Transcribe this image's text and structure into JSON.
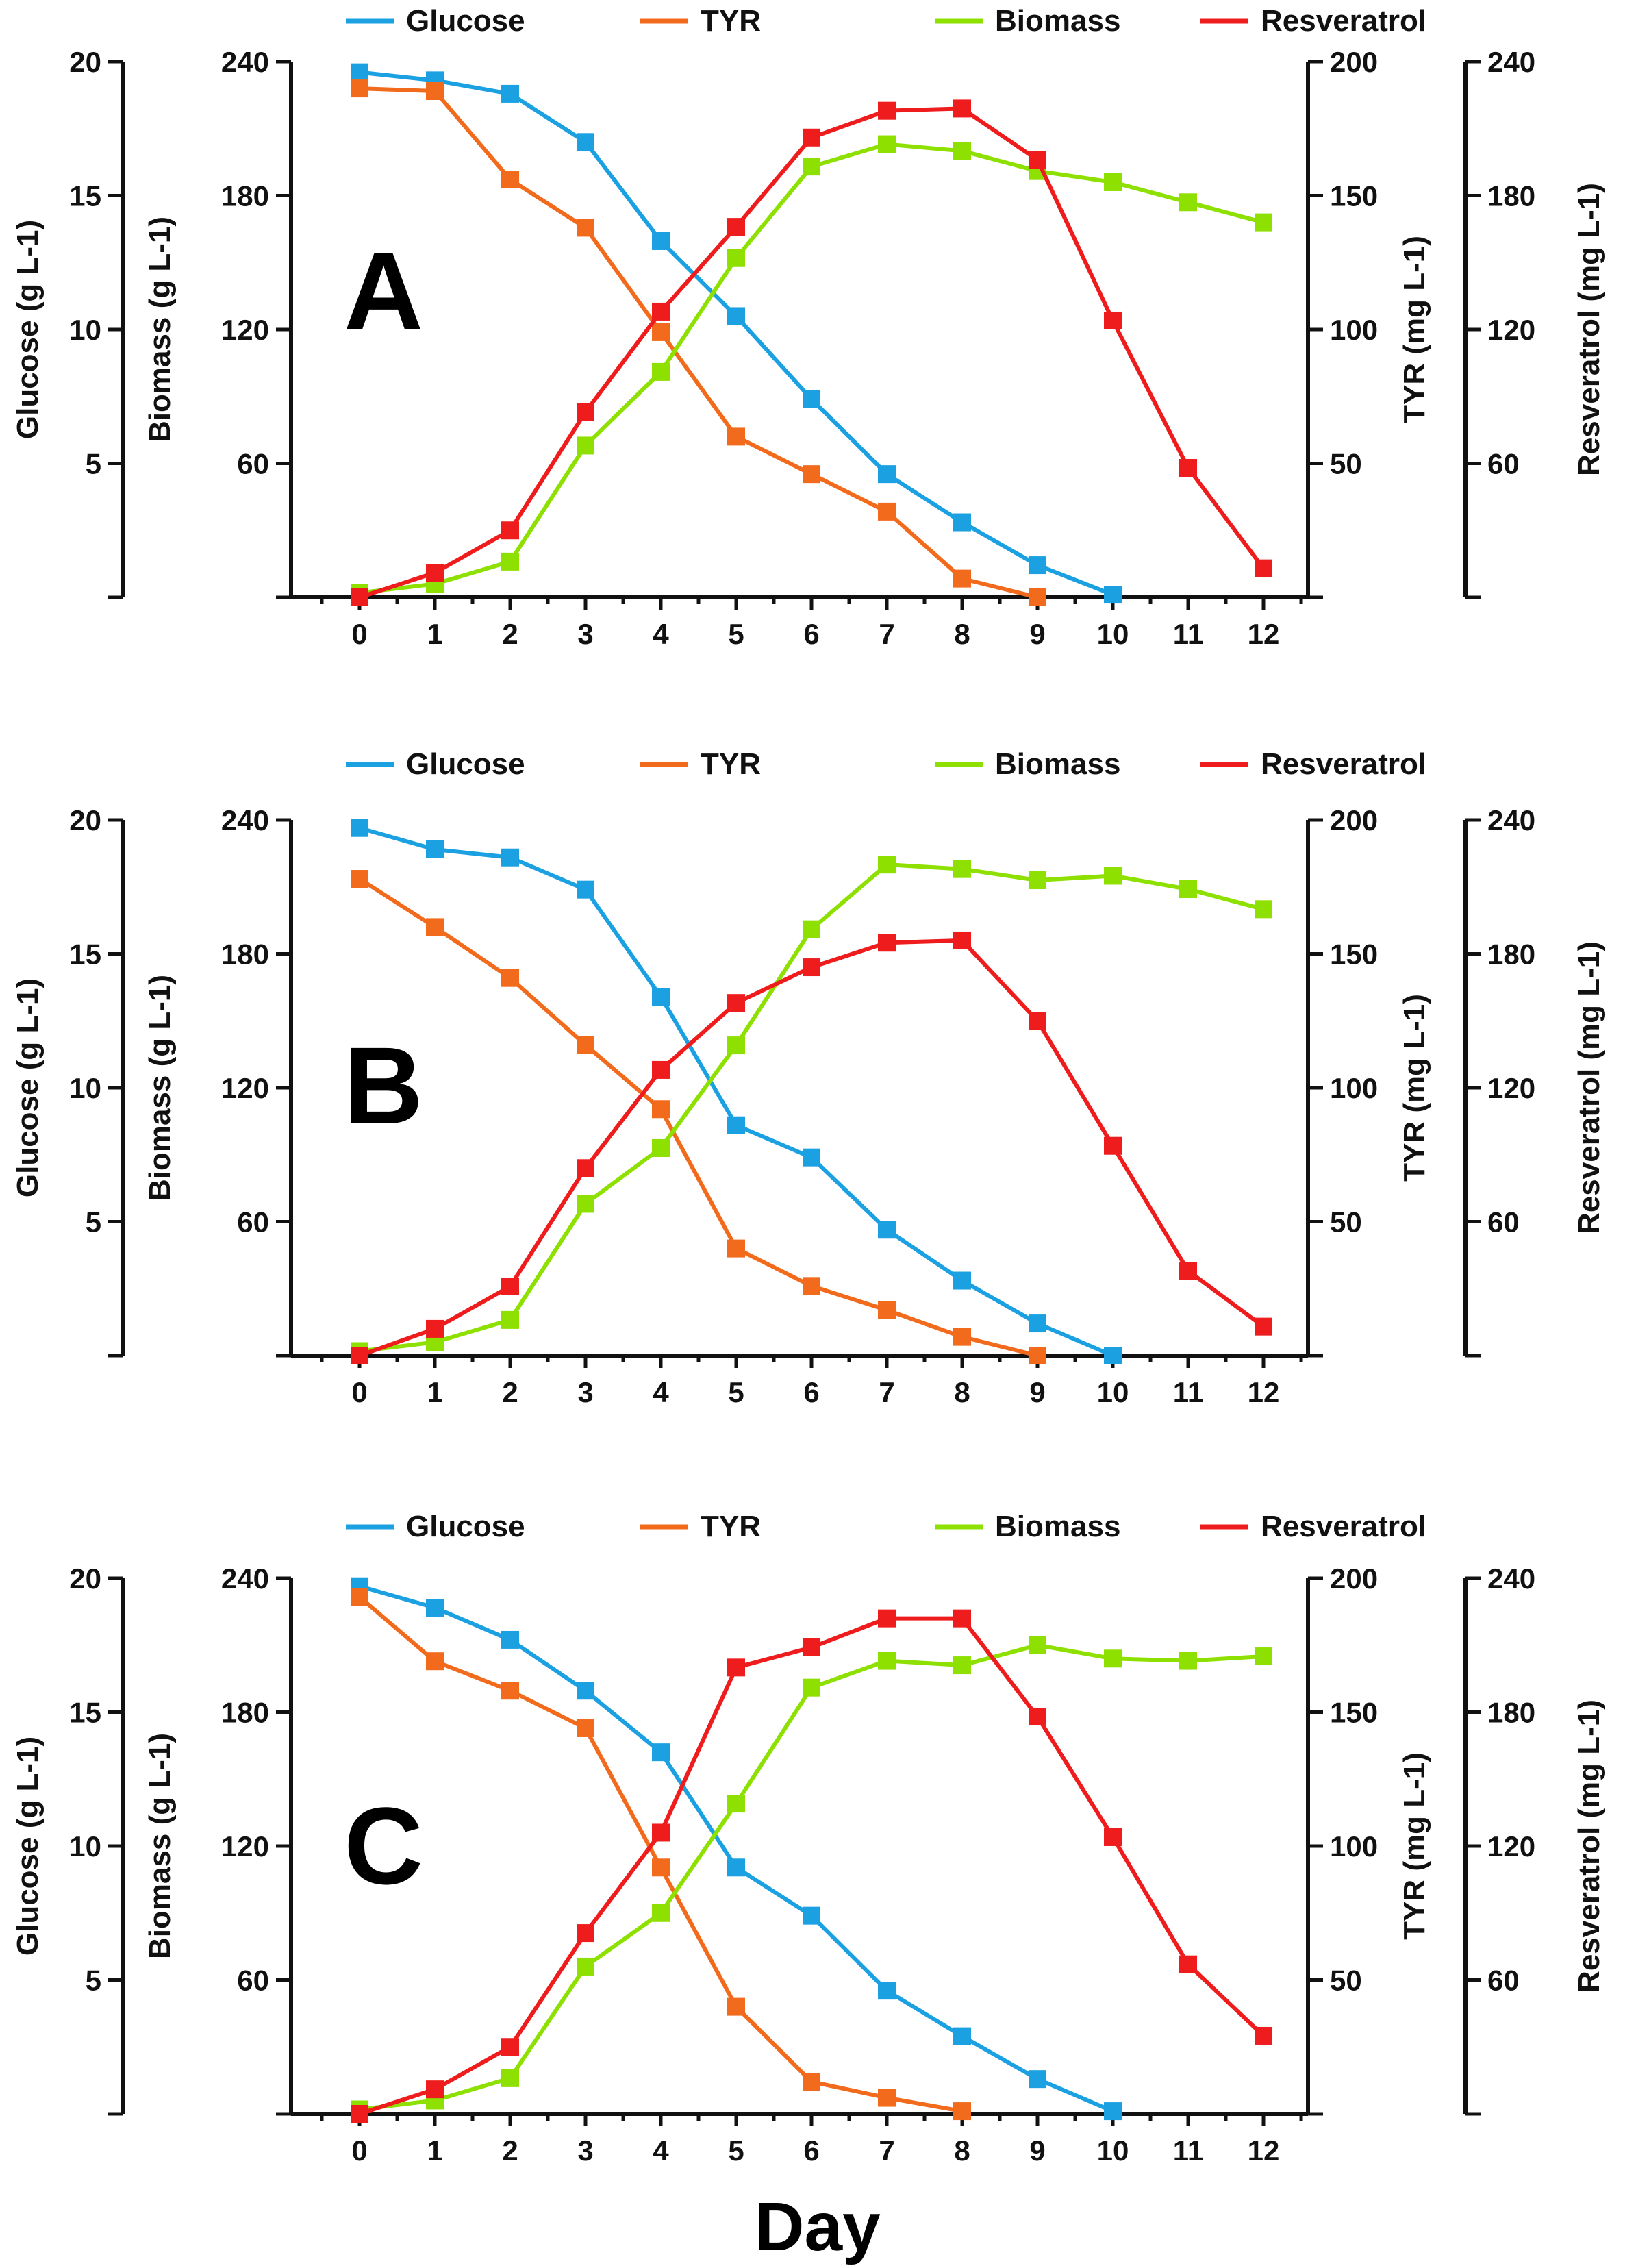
{
  "chart_data": {
    "type": "line",
    "xlabel": "Day",
    "x": [
      0,
      1,
      2,
      3,
      4,
      5,
      6,
      7,
      8,
      9,
      10,
      11,
      12
    ],
    "axes": {
      "glucose": {
        "label": "Glucose (g L-1)",
        "ylim": [
          0,
          20
        ],
        "ticks": [
          5,
          10,
          15,
          20
        ],
        "tick_labels": [
          "5",
          "10",
          "15",
          "20"
        ]
      },
      "biomass": {
        "label": "Biomass (g L-1)",
        "ylim": [
          0,
          240
        ],
        "ticks": [
          60,
          120,
          180,
          240
        ],
        "tick_labels": [
          "60",
          "120",
          "180",
          "240"
        ]
      },
      "tyr": {
        "label": "TYR (mg L-1)",
        "ylim": [
          0,
          200
        ],
        "ticks": [
          50,
          100,
          150,
          200
        ],
        "tick_labels": [
          "50",
          "100",
          "150",
          "200"
        ]
      },
      "resveratrol": {
        "label": "Resveratrol (mg L-1)",
        "ylim": [
          0,
          240
        ],
        "ticks": [
          60,
          120,
          180,
          240
        ],
        "tick_labels": [
          "60",
          "120",
          "180",
          "240"
        ]
      }
    },
    "legend": [
      {
        "name": "Glucose",
        "color": "#1ba1e2"
      },
      {
        "name": "TYR",
        "color": "#f26b1d"
      },
      {
        "name": "Biomass",
        "color": "#8ee000"
      },
      {
        "name": "Resveratrol",
        "color": "#ee1c1c"
      }
    ],
    "panels": [
      {
        "title": "A",
        "series": [
          {
            "name": "Glucose",
            "axis": "glucose",
            "color": "#1ba1e2",
            "x": [
              0,
              1,
              2,
              3,
              4,
              5,
              6,
              7,
              8,
              9,
              10
            ],
            "values": [
              19.6,
              19.3,
              18.8,
              17.0,
              13.3,
              10.5,
              7.4,
              4.6,
              2.8,
              1.2,
              0.1
            ]
          },
          {
            "name": "TYR",
            "axis": "tyr",
            "color": "#f26b1d",
            "x": [
              0,
              1,
              2,
              3,
              4,
              5,
              6,
              7,
              8,
              9
            ],
            "values": [
              190,
              189,
              156,
              138,
              99,
              60,
              46,
              32,
              7,
              0
            ]
          },
          {
            "name": "Biomass",
            "axis": "biomass",
            "color": "#8ee000",
            "x": [
              0,
              1,
              2,
              3,
              4,
              5,
              6,
              7,
              8,
              9,
              10,
              11,
              12
            ],
            "values": [
              2,
              6,
              16,
              68,
              101,
              152,
              193,
              203,
              200,
              191,
              186,
              177,
              168
            ]
          },
          {
            "name": "Resveratrol",
            "axis": "resveratrol",
            "color": "#ee1c1c",
            "x": [
              0,
              1,
              2,
              3,
              4,
              5,
              6,
              7,
              8,
              9,
              10,
              11,
              12
            ],
            "values": [
              0,
              11,
              30,
              83,
              128,
              166,
              206,
              218,
              219,
              196,
              124,
              58,
              13
            ]
          }
        ]
      },
      {
        "title": "B",
        "series": [
          {
            "name": "Glucose",
            "axis": "glucose",
            "color": "#1ba1e2",
            "x": [
              0,
              1,
              2,
              3,
              4,
              5,
              6,
              7,
              8,
              9,
              10
            ],
            "values": [
              19.7,
              18.9,
              18.6,
              17.4,
              13.4,
              8.6,
              7.4,
              4.7,
              2.8,
              1.2,
              0.0
            ]
          },
          {
            "name": "TYR",
            "axis": "tyr",
            "color": "#f26b1d",
            "x": [
              0,
              1,
              2,
              3,
              4,
              5,
              6,
              7,
              8,
              9
            ],
            "values": [
              178,
              160,
              141,
              116,
              92,
              40,
              26,
              17,
              7,
              0
            ]
          },
          {
            "name": "Biomass",
            "axis": "biomass",
            "color": "#8ee000",
            "x": [
              0,
              1,
              2,
              3,
              4,
              5,
              6,
              7,
              8,
              9,
              10,
              11,
              12
            ],
            "values": [
              2,
              6,
              16,
              68,
              93,
              139,
              191,
              220,
              218,
              213,
              215,
              209,
              200
            ]
          },
          {
            "name": "Resveratrol",
            "axis": "resveratrol",
            "color": "#ee1c1c",
            "x": [
              0,
              1,
              2,
              3,
              4,
              5,
              6,
              7,
              8,
              9,
              10,
              11,
              12
            ],
            "values": [
              0,
              12,
              31,
              84,
              128,
              158,
              174,
              185,
              186,
              150,
              94,
              38,
              13
            ]
          }
        ]
      },
      {
        "title": "C",
        "series": [
          {
            "name": "Glucose",
            "axis": "glucose",
            "color": "#1ba1e2",
            "x": [
              0,
              1,
              2,
              3,
              4,
              5,
              6,
              7,
              8,
              9,
              10
            ],
            "values": [
              19.7,
              18.9,
              17.7,
              15.8,
              13.5,
              9.2,
              7.4,
              4.6,
              2.9,
              1.3,
              0.1
            ]
          },
          {
            "name": "TYR",
            "axis": "tyr",
            "color": "#f26b1d",
            "x": [
              0,
              1,
              2,
              3,
              4,
              5,
              6,
              7,
              8
            ],
            "values": [
              193,
              169,
              158,
              144,
              92,
              40,
              12,
              6,
              1
            ]
          },
          {
            "name": "Biomass",
            "axis": "biomass",
            "color": "#8ee000",
            "x": [
              0,
              1,
              2,
              3,
              4,
              5,
              6,
              7,
              8,
              9,
              10,
              11,
              12
            ],
            "values": [
              2,
              6,
              16,
              66,
              90,
              139,
              191,
              203,
              201,
              210,
              204,
              203,
              205
            ]
          },
          {
            "name": "Resveratrol",
            "axis": "resveratrol",
            "color": "#ee1c1c",
            "x": [
              0,
              1,
              2,
              3,
              4,
              5,
              6,
              7,
              8,
              9,
              10,
              11,
              12
            ],
            "values": [
              0,
              11,
              30,
              81,
              126,
              200,
              209,
              222,
              222,
              178,
              124,
              67,
              35
            ]
          }
        ]
      }
    ]
  }
}
